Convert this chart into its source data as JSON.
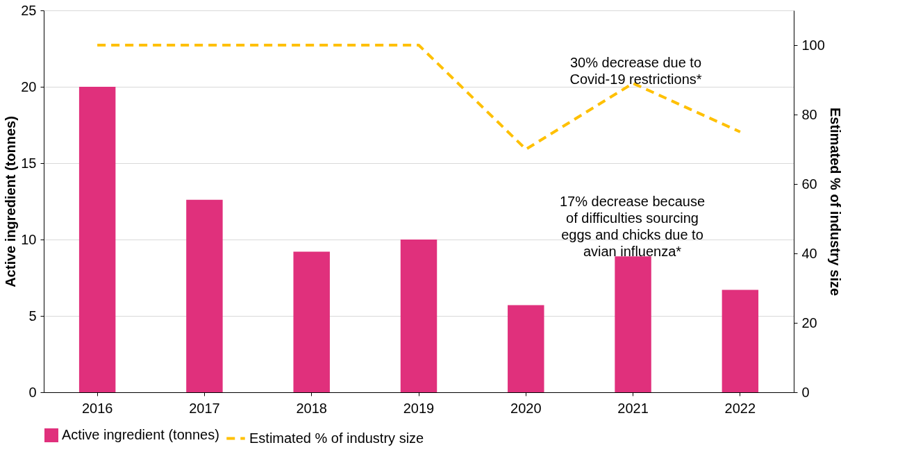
{
  "chart_data": {
    "type": "bar",
    "ylabel": "Active ingredient (tonnes)",
    "y2label": "Estimated % of industry size",
    "categories": [
      "2016",
      "2017",
      "2018",
      "2019",
      "2020",
      "2021",
      "2022"
    ],
    "series": [
      {
        "name": "Active ingredient (tonnes)",
        "color": "#e0307c",
        "values": [
          20.0,
          12.6,
          9.2,
          10.0,
          5.7,
          8.9,
          6.7
        ]
      },
      {
        "name": "Estimated % of industry size",
        "type": "line",
        "axis": "y2",
        "color": "#ffc000",
        "line_style": "dashed",
        "values": [
          100,
          100,
          100,
          100,
          70,
          89,
          75
        ]
      }
    ],
    "ylim": [
      0,
      25
    ],
    "yticks": [
      0,
      5,
      10,
      15,
      20,
      25
    ],
    "y2lim": [
      0,
      110
    ],
    "y2ticks": [
      0,
      20,
      40,
      60,
      80,
      100
    ],
    "grid": "y",
    "legend": "bottom",
    "annotations": [
      "30% decrease due to\nCovid-19 restrictions*",
      "17% decrease because\nof difficulties sourcing\neggs and chicks due to\navian influenza*"
    ]
  }
}
